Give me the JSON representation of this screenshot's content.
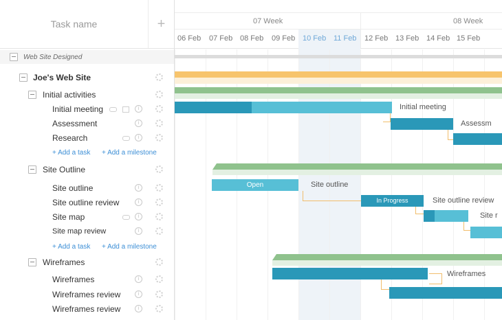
{
  "left_panel": {
    "task_name_header": "Task name",
    "add_button": "+",
    "project_group": "Web Site Designed",
    "project": "Joe's Web Site",
    "sections": [
      {
        "name": "Initial activities",
        "tasks": [
          "Initial meeting",
          "Assessment",
          "Research"
        ]
      },
      {
        "name": "Site Outline",
        "tasks": [
          "Site outline",
          "Site outline review",
          "Site map",
          "Site map review"
        ]
      },
      {
        "name": "Wireframes",
        "tasks": [
          "Wireframes",
          "Wireframes review",
          "Wireframes review"
        ]
      }
    ],
    "add_task": "+ Add a task",
    "add_milestone": "+ Add a milestone"
  },
  "timeline": {
    "weeks": [
      "07 Week",
      "08 Week"
    ],
    "days": [
      "06 Feb",
      "07 Feb",
      "08 Feb",
      "09 Feb",
      "10 Feb",
      "11 Feb",
      "12 Feb",
      "13 Feb",
      "14 Feb",
      "15 Feb"
    ],
    "highlight_days": [
      "10 Feb",
      "11 Feb"
    ],
    "bar_labels": {
      "open": "Open",
      "in_progress": "In Progress"
    },
    "external_labels": {
      "initial_meeting": "Initial meeting",
      "assessment": "Assessm",
      "site_outline": "Site outline",
      "site_outline_review": "Site outline review",
      "site_map": "Site r",
      "wireframes": "Wireframes"
    }
  },
  "colors": {
    "project_bar": "#f7c46c",
    "section_bar": "#8fc28d",
    "task_dark": "#2a98b8",
    "task_light": "#57bfd6",
    "connector": "#f1bd6b",
    "link": "#3d8fd6",
    "highlight_column": "#eef3f8"
  }
}
